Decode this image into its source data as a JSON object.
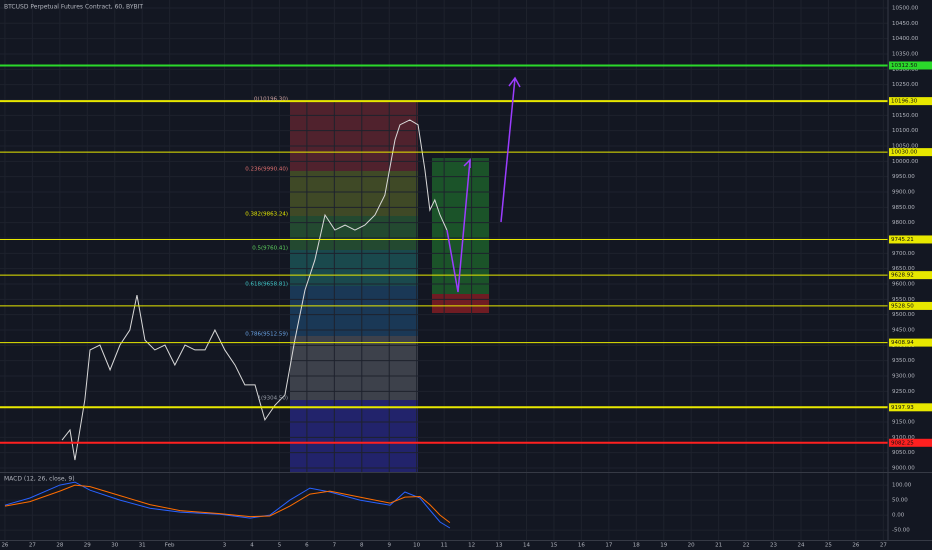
{
  "chart_data": [
    {
      "type": "line",
      "title": "BTCUSD Perpetual Futures Contract, 60, BYBIT",
      "color": "#d9d9d9",
      "x": [
        2.08,
        2.37,
        2.55,
        2.91,
        3.1,
        3.46,
        3.83,
        4.19,
        4.55,
        4.81,
        5.1,
        5.46,
        5.83,
        6.19,
        6.56,
        6.92,
        7.29,
        7.65,
        8.01,
        8.38,
        8.74,
        9.11,
        9.47,
        9.84,
        10.2,
        10.56,
        10.93,
        11.29,
        11.66,
        12.02,
        12.39,
        12.75,
        13.11,
        13.48,
        13.84,
        14.21,
        14.39,
        14.75,
        15.05,
        15.3,
        15.48,
        15.66,
        15.85,
        16.1
      ],
      "values": [
        9091,
        9124,
        9026,
        9222,
        9385,
        9401,
        9320,
        9401,
        9450,
        9564,
        9417,
        9385,
        9401,
        9336,
        9401,
        9385,
        9385,
        9450,
        9385,
        9336,
        9271,
        9271,
        9157,
        9205,
        9238,
        9417,
        9580,
        9678,
        9825,
        9776,
        9792,
        9776,
        9792,
        9825,
        9890,
        10070,
        10119,
        10135,
        10119,
        9972,
        9841,
        9874,
        9825,
        9776
      ],
      "xlim": [
        -0.18,
        32.17
      ],
      "ylim": [
        8987,
        10526
      ],
      "xticks": [
        {
          "value": 0,
          "label": "26"
        },
        {
          "value": 1,
          "label": "27"
        },
        {
          "value": 2,
          "label": "28"
        },
        {
          "value": 3,
          "label": "29"
        },
        {
          "value": 4,
          "label": "30"
        },
        {
          "value": 5,
          "label": "31"
        },
        {
          "value": 6,
          "label": "Feb"
        },
        {
          "value": 8,
          "label": "3"
        },
        {
          "value": 9,
          "label": "4"
        },
        {
          "value": 10,
          "label": "5"
        },
        {
          "value": 11,
          "label": "6"
        },
        {
          "value": 12,
          "label": "7"
        },
        {
          "value": 13,
          "label": "8"
        },
        {
          "value": 14,
          "label": "9"
        },
        {
          "value": 15,
          "label": "10"
        },
        {
          "value": 16,
          "label": "11"
        },
        {
          "value": 17,
          "label": "12"
        },
        {
          "value": 18,
          "label": "13"
        },
        {
          "value": 19,
          "label": "14"
        },
        {
          "value": 20,
          "label": "15"
        },
        {
          "value": 21,
          "label": "16"
        },
        {
          "value": 22,
          "label": "17"
        },
        {
          "value": 23,
          "label": "18"
        },
        {
          "value": 24,
          "label": "19"
        },
        {
          "value": 25,
          "label": "20"
        },
        {
          "value": 26,
          "label": "21"
        },
        {
          "value": 27,
          "label": "22"
        },
        {
          "value": 28,
          "label": "23"
        },
        {
          "value": 29,
          "label": "24"
        },
        {
          "value": 30,
          "label": "25"
        },
        {
          "value": 31,
          "label": "26"
        },
        {
          "value": 32,
          "label": "27"
        }
      ],
      "yticks": [
        {
          "value": 9000,
          "label": "9000.00"
        },
        {
          "value": 9050,
          "label": "9050.00"
        },
        {
          "value": 9100,
          "label": "9100.00"
        },
        {
          "value": 9150,
          "label": "9150.00"
        },
        {
          "value": 9200,
          "label": "9200.00"
        },
        {
          "value": 9250,
          "label": "9250.00"
        },
        {
          "value": 9300,
          "label": "9300.00"
        },
        {
          "value": 9350,
          "label": "9350.00"
        },
        {
          "value": 9400,
          "label": "9400.00"
        },
        {
          "value": 9450,
          "label": "9450.00"
        },
        {
          "value": 9500,
          "label": "9500.00"
        },
        {
          "value": 9550,
          "label": "9550.00"
        },
        {
          "value": 9600,
          "label": "9600.00"
        },
        {
          "value": 9650,
          "label": "9650.00"
        },
        {
          "value": 9700,
          "label": "9700.00"
        },
        {
          "value": 9750,
          "label": "9750.00"
        },
        {
          "value": 9800,
          "label": "9800.00"
        },
        {
          "value": 9850,
          "label": "9850.00"
        },
        {
          "value": 9900,
          "label": "9900.00"
        },
        {
          "value": 9950,
          "label": "9950.00"
        },
        {
          "value": 10000,
          "label": "10000.00"
        },
        {
          "value": 10050,
          "label": "10050.00"
        },
        {
          "value": 10100,
          "label": "10100.00"
        },
        {
          "value": 10150,
          "label": "10150.00"
        },
        {
          "value": 10200,
          "label": "10200.00"
        },
        {
          "value": 10250,
          "label": "10250.00"
        },
        {
          "value": 10300,
          "label": "10300.00"
        },
        {
          "value": 10350,
          "label": "10350.00"
        },
        {
          "value": 10400,
          "label": "10400.00"
        },
        {
          "value": 10450,
          "label": "10450.00"
        },
        {
          "value": 10500,
          "label": "10500.00"
        }
      ],
      "grid": true,
      "levels": [
        {
          "price": 10312.5,
          "label": "10312.50",
          "color": "#2bd92b"
        },
        {
          "price": 10196.3,
          "label": "10196.30",
          "color": "#e8e800"
        },
        {
          "price": 10030,
          "label": "10030.00",
          "color": "#e8e800"
        },
        {
          "price": 9745.21,
          "label": "9745.21",
          "color": "#e8e800"
        },
        {
          "price": 9628.92,
          "label": "9628.92",
          "color": "#e8e800"
        },
        {
          "price": 9528.5,
          "label": "9528.50",
          "color": "#e8e800"
        },
        {
          "price": 9408.94,
          "label": "9408.94",
          "color": "#e8e800"
        },
        {
          "price": 9197.93,
          "label": "9197.93",
          "color": "#e8e800"
        },
        {
          "price": 9082.25,
          "label": "9082.25",
          "color": "#ff2020"
        }
      ],
      "annotations": [
        "0(10196.30)",
        "0.236(9990.40)",
        "0.382(9863.24)",
        "0.5(9760.41)",
        "0.618(9658.81)",
        "0.786(9512.59)",
        "1(9304.50)"
      ]
    },
    {
      "type": "line",
      "title": "MACD (12, 26, close, 9)",
      "x": [
        0,
        0.91,
        2.0,
        2.55,
        3.1,
        4.19,
        5.28,
        6.38,
        7.83,
        8.93,
        9.65,
        10.38,
        11.11,
        11.84,
        12.93,
        14.03,
        14.57,
        15.12,
        15.48,
        15.85,
        16.21
      ],
      "series": [
        {
          "color": "#2962ff",
          "values": [
            33,
            57,
            100,
            110,
            83,
            50,
            23,
            10,
            3,
            -10,
            0,
            50,
            90,
            77,
            50,
            33,
            77,
            57,
            17,
            -23,
            -43
          ]
        },
        {
          "color": "#ff6d00",
          "values": [
            30,
            45,
            80,
            100,
            95,
            65,
            35,
            15,
            5,
            -5,
            -3,
            30,
            70,
            80,
            60,
            40,
            60,
            62,
            35,
            0,
            -25
          ]
        }
      ],
      "xlim": [
        -0.18,
        32.17
      ],
      "ylim": [
        -83,
        137
      ],
      "yticks": [
        {
          "value": 100,
          "label": "100.00"
        },
        {
          "value": 50,
          "label": "50.00"
        },
        {
          "value": 0,
          "label": "0.00"
        },
        {
          "value": -50,
          "label": "-50.00"
        }
      ]
    }
  ]
}
